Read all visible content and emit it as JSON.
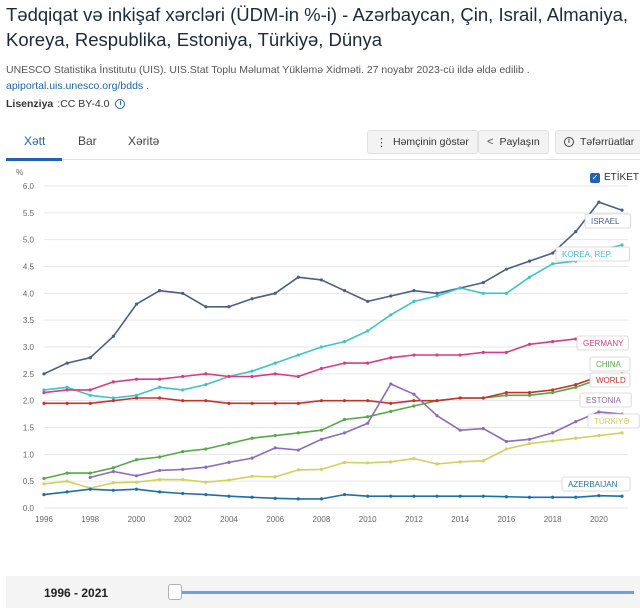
{
  "header": {
    "title": "Tədqiqat və inkişaf xərcləri (ÜDM-in %-i) - Azərbaycan, Çin, Israil, Almaniya, Koreya, Respublika, Estoniya, Türkiyə, Dünya",
    "source_text": "UNESCO Statistika İnstitutu (UIS). UIS.Stat Toplu Məlumat Yükləmə Xidməti. 27 noyabr 2023-cü ildə əldə edilib .",
    "source_link": "apiportal.uis.unesco.org/bdds",
    "license_label": "Lisenziya",
    "license_value": ":CC BY-4.0"
  },
  "tabs": [
    {
      "label": "Xətt",
      "active": true
    },
    {
      "label": "Bar",
      "active": false
    },
    {
      "label": "Xəritə",
      "active": false
    }
  ],
  "toolbar": {
    "also_show": "Həmçinin göstər",
    "share": "Paylaşın",
    "details": "Təfərrüatlar",
    "label_toggle": "ETİKET"
  },
  "range": {
    "label": "1996 - 2021"
  },
  "colors": {
    "accent": "#1f63b4",
    "israel": "#4a5f86",
    "korea": "#3ec3c8",
    "germany": "#d83c84",
    "china": "#55a845",
    "world": "#c8322d",
    "estonia": "#8d6bbd",
    "turkiye": "#cfd25c",
    "azerbaijan": "#1e6fa8"
  },
  "chart_data": {
    "type": "line",
    "title": "",
    "xlabel": "",
    "ylabel": "%",
    "xlim": [
      1996,
      2021
    ],
    "ylim": [
      0,
      6
    ],
    "x_ticks": [
      1996,
      1998,
      2000,
      2002,
      2004,
      2006,
      2008,
      2010,
      2012,
      2014,
      2016,
      2018,
      2020
    ],
    "y_ticks": [
      0.0,
      0.5,
      1.0,
      1.5,
      2.0,
      2.5,
      3.0,
      3.5,
      4.0,
      4.5,
      5.0,
      5.5,
      6.0
    ],
    "y_tick_labels": [
      "0.0",
      "0.5",
      "1.0",
      "1.5",
      "2.0",
      "2.5",
      "3.0",
      "3.5",
      "4.0",
      "4.5",
      "5.0",
      "5.5",
      "6.0"
    ],
    "x": [
      1996,
      1997,
      1998,
      1999,
      2000,
      2001,
      2002,
      2003,
      2004,
      2005,
      2006,
      2007,
      2008,
      2009,
      2010,
      2011,
      2012,
      2013,
      2014,
      2015,
      2016,
      2017,
      2018,
      2019,
      2020,
      2021
    ],
    "series": [
      {
        "name": "ISRAEL",
        "color_key": "israel",
        "values": [
          2.5,
          2.7,
          2.8,
          3.2,
          3.8,
          4.05,
          4.0,
          3.75,
          3.75,
          3.9,
          4.0,
          4.3,
          4.25,
          4.05,
          3.85,
          3.95,
          4.05,
          4.0,
          4.1,
          4.2,
          4.45,
          4.6,
          4.75,
          5.15,
          5.7,
          5.55
        ]
      },
      {
        "name": "KOREA, REP.",
        "color_key": "korea",
        "values": [
          2.2,
          2.25,
          2.1,
          2.05,
          2.1,
          2.25,
          2.2,
          2.3,
          2.45,
          2.55,
          2.7,
          2.85,
          3.0,
          3.1,
          3.3,
          3.6,
          3.85,
          3.95,
          4.1,
          4.0,
          4.0,
          4.3,
          4.55,
          4.6,
          4.8,
          4.9
        ]
      },
      {
        "name": "GERMANY",
        "color_key": "germany",
        "values": [
          2.15,
          2.2,
          2.2,
          2.35,
          2.4,
          2.4,
          2.45,
          2.5,
          2.45,
          2.45,
          2.5,
          2.45,
          2.6,
          2.7,
          2.7,
          2.8,
          2.85,
          2.85,
          2.85,
          2.9,
          2.9,
          3.05,
          3.1,
          3.15,
          3.15,
          3.15
        ]
      },
      {
        "name": "CHINA",
        "color_key": "china",
        "values": [
          0.55,
          0.65,
          0.65,
          0.75,
          0.9,
          0.95,
          1.05,
          1.1,
          1.2,
          1.3,
          1.35,
          1.4,
          1.45,
          1.65,
          1.7,
          1.8,
          1.9,
          2.0,
          2.05,
          2.05,
          2.1,
          2.1,
          2.15,
          2.25,
          2.4,
          2.45
        ]
      },
      {
        "name": "WORLD",
        "color_key": "world",
        "values": [
          1.95,
          1.95,
          1.95,
          2.0,
          2.05,
          2.05,
          2.0,
          2.0,
          1.95,
          1.95,
          1.95,
          1.95,
          2.0,
          2.0,
          2.0,
          1.95,
          2.0,
          2.0,
          2.05,
          2.05,
          2.15,
          2.15,
          2.2,
          2.3,
          2.45,
          2.5
        ]
      },
      {
        "name": "ESTONIA",
        "color_key": "estonia",
        "values": [
          null,
          null,
          0.57,
          0.68,
          0.6,
          0.7,
          0.72,
          0.76,
          0.85,
          0.93,
          1.12,
          1.08,
          1.28,
          1.4,
          1.58,
          2.31,
          2.12,
          1.72,
          1.45,
          1.48,
          1.24,
          1.28,
          1.4,
          1.61,
          1.79,
          1.75
        ]
      },
      {
        "name": "TÜRKİYƏ",
        "color_key": "turkiye",
        "values": [
          0.45,
          0.5,
          0.37,
          0.47,
          0.48,
          0.53,
          0.53,
          0.48,
          0.52,
          0.59,
          0.58,
          0.71,
          0.72,
          0.85,
          0.84,
          0.86,
          0.92,
          0.82,
          0.86,
          0.88,
          1.1,
          1.2,
          1.25,
          1.3,
          1.35,
          1.4
        ]
      },
      {
        "name": "AZERBAIJAN",
        "color_key": "azerbaijan",
        "values": [
          0.25,
          0.3,
          0.35,
          0.33,
          0.35,
          0.3,
          0.27,
          0.25,
          0.22,
          0.2,
          0.18,
          0.17,
          0.17,
          0.25,
          0.22,
          0.22,
          0.22,
          0.22,
          0.22,
          0.22,
          0.21,
          0.2,
          0.2,
          0.2,
          0.23,
          0.22
        ]
      }
    ]
  }
}
